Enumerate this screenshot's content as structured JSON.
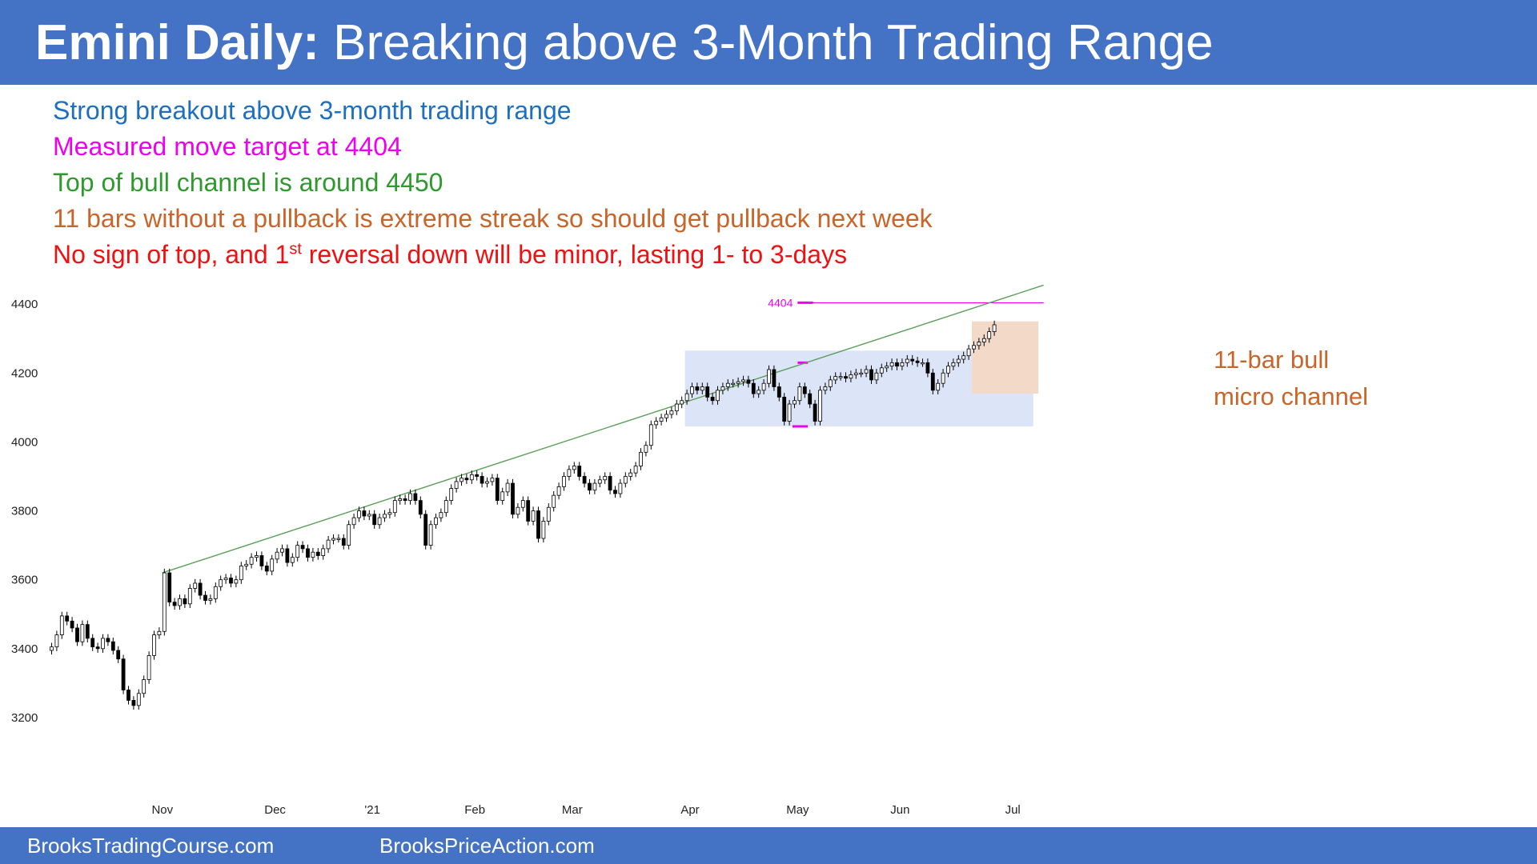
{
  "title": {
    "bold": "Emini Daily:",
    "rest": "Breaking above 3-Month Trading Range"
  },
  "notes": [
    {
      "text": "Strong breakout above 3-month trading range",
      "color": "#1f6fc0"
    },
    {
      "text": "Measured move target at 4404",
      "color": "#ee00ee"
    },
    {
      "text": "Top of bull channel is around 4450",
      "color": "#2e9a2e"
    },
    {
      "text": "11 bars without a pullback is extreme streak so should get pullback next week",
      "color": "#c8652a"
    },
    {
      "text": "No sign of top, and 1",
      "sup": "st",
      "after": " reversal down will be minor, lasting 1- to 3-days",
      "color": "#ee1111"
    }
  ],
  "footer": {
    "left": "BrooksTradingCourse.com",
    "right": "BrooksPriceAction.com"
  },
  "chart_data": {
    "type": "candlestick",
    "ylim": [
      3100,
      4470
    ],
    "yticks": [
      3200,
      3400,
      3600,
      3800,
      4000,
      4200,
      4400
    ],
    "grid": false,
    "month_labels": [
      {
        "label": "Nov",
        "bar": 22
      },
      {
        "label": "Dec",
        "bar": 44
      },
      {
        "label": "'21",
        "bar": 63
      },
      {
        "label": "Feb",
        "bar": 83
      },
      {
        "label": "Mar",
        "bar": 102
      },
      {
        "label": "Apr",
        "bar": 125
      },
      {
        "label": "May",
        "bar": 146
      },
      {
        "label": "Jun",
        "bar": 166
      },
      {
        "label": "Jul",
        "bar": 188
      }
    ],
    "closes": [
      3405,
      3440,
      3495,
      3480,
      3460,
      3420,
      3470,
      3430,
      3405,
      3400,
      3430,
      3420,
      3395,
      3370,
      3280,
      3250,
      3235,
      3270,
      3310,
      3380,
      3440,
      3450,
      3620,
      3535,
      3525,
      3545,
      3530,
      3575,
      3590,
      3555,
      3540,
      3545,
      3580,
      3600,
      3605,
      3590,
      3600,
      3640,
      3645,
      3665,
      3670,
      3640,
      3625,
      3660,
      3680,
      3690,
      3650,
      3665,
      3700,
      3690,
      3665,
      3680,
      3670,
      3690,
      3715,
      3720,
      3720,
      3700,
      3760,
      3780,
      3800,
      3785,
      3790,
      3760,
      3780,
      3790,
      3795,
      3830,
      3835,
      3830,
      3850,
      3830,
      3790,
      3700,
      3760,
      3780,
      3795,
      3830,
      3865,
      3885,
      3895,
      3890,
      3905,
      3900,
      3880,
      3885,
      3895,
      3830,
      3855,
      3880,
      3790,
      3810,
      3830,
      3770,
      3800,
      3720,
      3770,
      3810,
      3845,
      3870,
      3900,
      3920,
      3930,
      3900,
      3880,
      3860,
      3880,
      3890,
      3900,
      3860,
      3850,
      3880,
      3900,
      3910,
      3930,
      3970,
      3990,
      4050,
      4060,
      4070,
      4080,
      4090,
      4110,
      4120,
      4140,
      4160,
      4150,
      4160,
      4130,
      4120,
      4150,
      4160,
      4170,
      4170,
      4175,
      4180,
      4170,
      4140,
      4150,
      4170,
      4210,
      4160,
      4130,
      4060,
      4110,
      4120,
      4160,
      4140,
      4110,
      4060,
      4150,
      4160,
      4180,
      4190,
      4190,
      4185,
      4195,
      4200,
      4200,
      4210,
      4180,
      4200,
      4215,
      4220,
      4230,
      4220,
      4230,
      4240,
      4235,
      4230,
      4230,
      4200,
      4150,
      4170,
      4200,
      4220,
      4230,
      4240,
      4250,
      4270,
      4280,
      4290,
      4300,
      4320,
      4340
    ],
    "trendline": {
      "from": {
        "bar": 22,
        "price": 3620
      },
      "to": {
        "bar": 194,
        "price": 4455
      }
    },
    "target": {
      "label": "4404",
      "value": 4404
    },
    "range_box": {
      "from_bar": 124,
      "to_bar": 192,
      "low": 4045,
      "high": 4265
    },
    "micro_box": {
      "from_bar": 180,
      "to_bar": 193,
      "low": 4140,
      "high": 4350
    },
    "micro_label": [
      "11-bar bull",
      "micro channel"
    ],
    "colors": {
      "candle": "#000000",
      "trend": "#5aa05a",
      "target": "#ee00ee",
      "range": "#dce4f8",
      "micro": "#f3d9c8",
      "micro_text": "#c8652a"
    }
  }
}
